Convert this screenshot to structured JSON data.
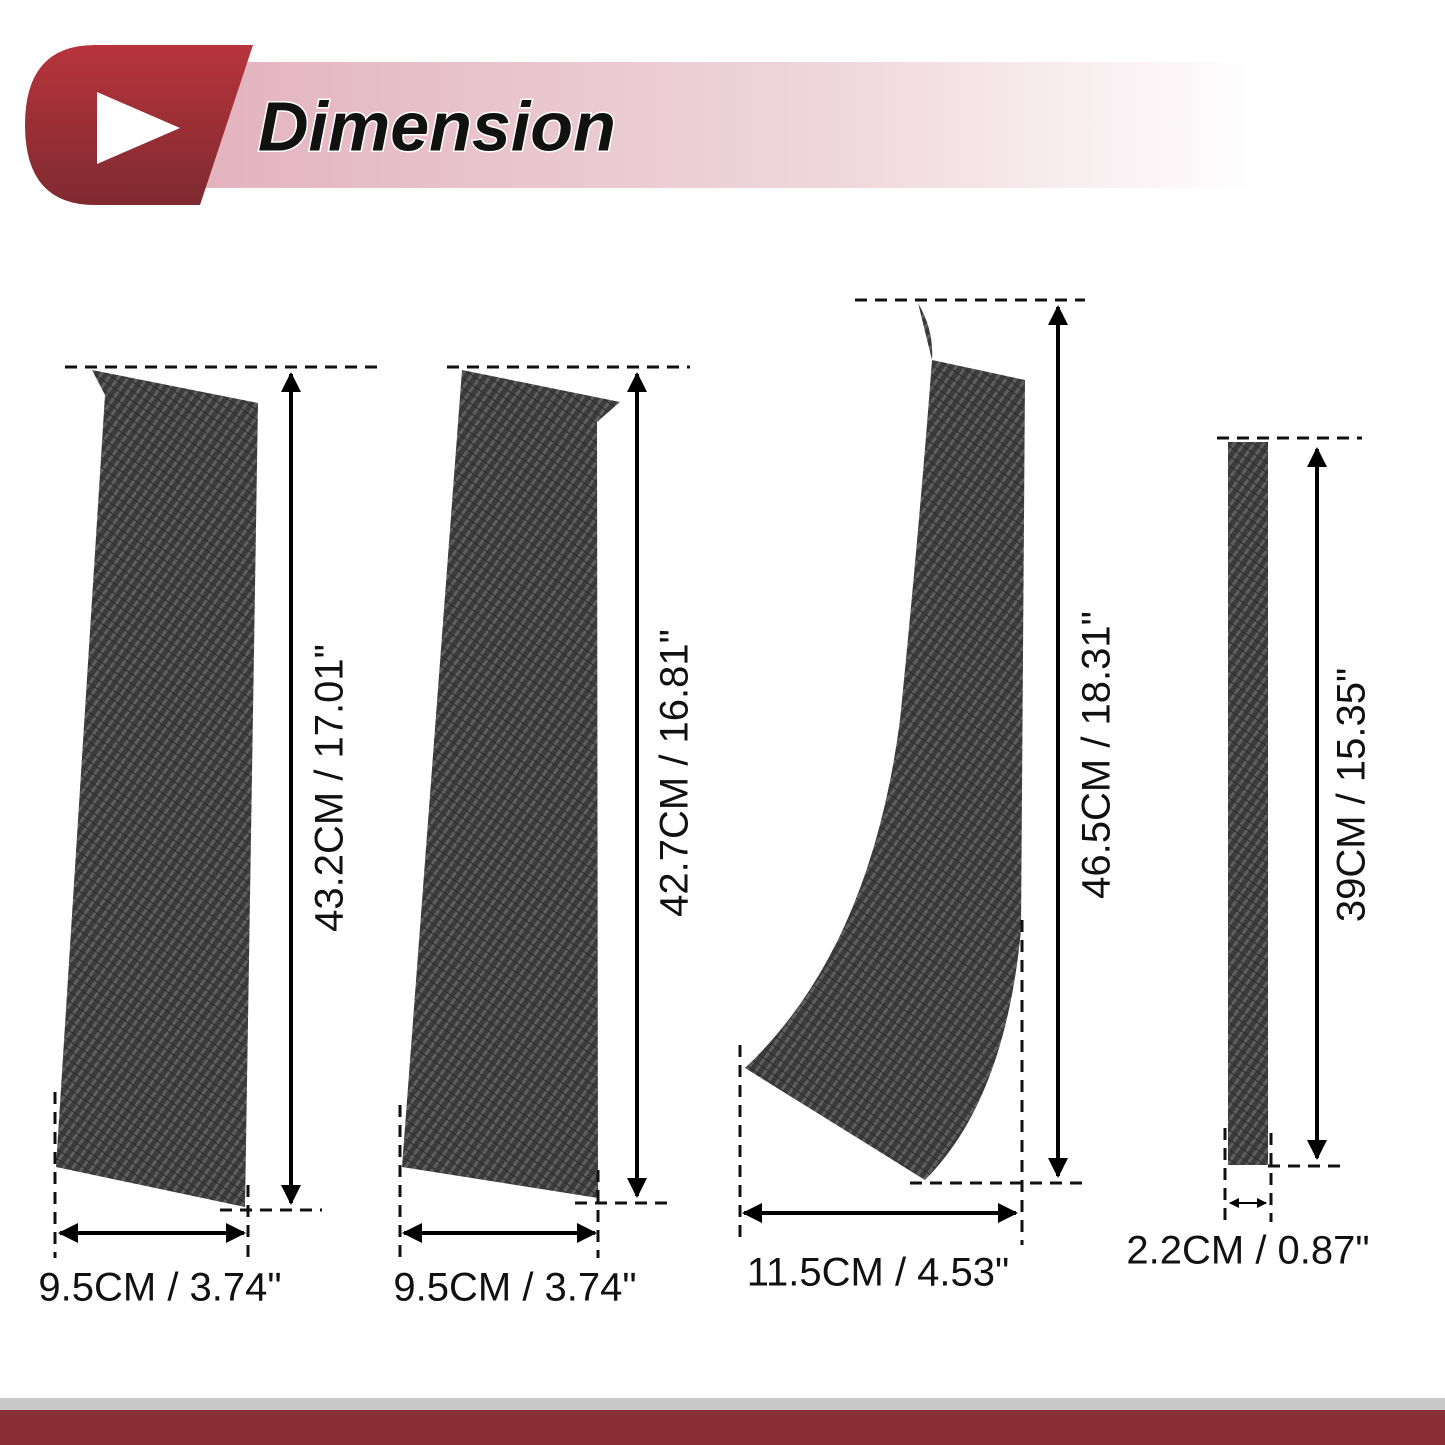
{
  "header": {
    "title": "Dimension"
  },
  "pieces": [
    {
      "height": "43.2CM / 17.01\"",
      "width": "9.5CM / 3.74\""
    },
    {
      "height": "42.7CM / 16.81\"",
      "width": "9.5CM / 3.74\""
    },
    {
      "height": "46.5CM / 18.31\"",
      "width": "11.5CM / 4.53\""
    },
    {
      "height": "39CM / 15.35\"",
      "width": "2.2CM / 0.87\""
    }
  ]
}
